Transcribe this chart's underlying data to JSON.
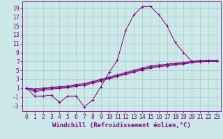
{
  "xlabel": "Windchill (Refroidissement éolien,°C)",
  "background_color": "#cde8e8",
  "line_color": "#800080",
  "grid_color": "#a8cccc",
  "xlim": [
    -0.5,
    23.5
  ],
  "ylim": [
    -4.2,
    20.5
  ],
  "xticks": [
    0,
    1,
    2,
    3,
    4,
    5,
    6,
    7,
    8,
    9,
    10,
    11,
    12,
    13,
    14,
    15,
    16,
    17,
    18,
    19,
    20,
    21,
    22,
    23
  ],
  "yticks": [
    -3,
    -1,
    1,
    3,
    5,
    7,
    9,
    11,
    13,
    15,
    17,
    19
  ],
  "series": [
    {
      "x": [
        0,
        1,
        2,
        3,
        4,
        5,
        6,
        7,
        8,
        9,
        10,
        11,
        12,
        13,
        14,
        15,
        16,
        17,
        18,
        19,
        20,
        21,
        22,
        23
      ],
      "y": [
        1.0,
        -0.8,
        -0.8,
        -0.6,
        -2.2,
        -0.8,
        -0.8,
        -3.2,
        -1.7,
        1.3,
        4.5,
        7.3,
        14.0,
        17.5,
        19.3,
        19.4,
        17.5,
        15.0,
        11.2,
        9.0,
        7.0,
        7.2,
        7.2,
        7.2
      ]
    },
    {
      "x": [
        0,
        1,
        2,
        3,
        4,
        5,
        6,
        7,
        8,
        9,
        10,
        11,
        12,
        13,
        14,
        15,
        16,
        17,
        18,
        19,
        20,
        21,
        22,
        23
      ],
      "y": [
        1.0,
        0.8,
        1.0,
        1.2,
        1.3,
        1.5,
        1.8,
        2.0,
        2.5,
        3.0,
        3.5,
        4.0,
        4.5,
        5.0,
        5.5,
        6.0,
        6.2,
        6.4,
        6.6,
        6.8,
        7.0,
        7.1,
        7.2,
        7.2
      ]
    },
    {
      "x": [
        0,
        1,
        2,
        3,
        4,
        5,
        6,
        7,
        8,
        9,
        10,
        11,
        12,
        13,
        14,
        15,
        16,
        17,
        18,
        19,
        20,
        21,
        22,
        23
      ],
      "y": [
        1.0,
        0.5,
        0.8,
        1.0,
        1.1,
        1.3,
        1.6,
        1.8,
        2.3,
        2.8,
        3.3,
        3.8,
        4.3,
        4.8,
        5.3,
        5.7,
        6.0,
        6.2,
        6.4,
        6.6,
        6.8,
        7.0,
        7.1,
        7.1
      ]
    },
    {
      "x": [
        0,
        1,
        2,
        3,
        4,
        5,
        6,
        7,
        8,
        9,
        10,
        11,
        12,
        13,
        14,
        15,
        16,
        17,
        18,
        19,
        20,
        21,
        22,
        23
      ],
      "y": [
        1.0,
        0.2,
        0.5,
        0.8,
        0.9,
        1.1,
        1.4,
        1.6,
        2.1,
        2.6,
        3.1,
        3.6,
        4.1,
        4.6,
        5.1,
        5.5,
        5.8,
        6.0,
        6.2,
        6.4,
        6.7,
        6.9,
        7.0,
        7.0
      ]
    }
  ],
  "xlabel_fontsize": 6.5,
  "tick_fontsize": 5.8,
  "marker": "+",
  "markersize": 2.5,
  "linewidth": 0.7
}
